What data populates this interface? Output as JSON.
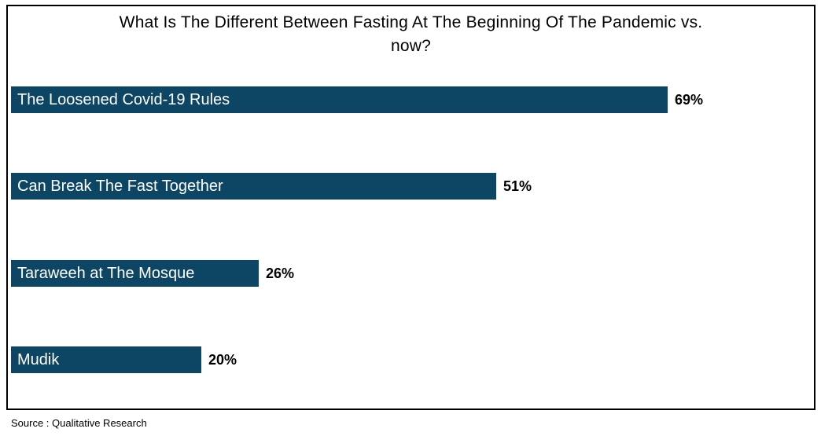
{
  "chart_data": {
    "type": "bar",
    "orientation": "horizontal",
    "title": "What Is The Different Between Fasting At The Beginning Of The Pandemic vs. now?",
    "title_lines": [
      "What Is The Different Between Fasting At The Beginning Of The Pandemic vs.",
      "now?"
    ],
    "categories": [
      "The Loosened Covid-19 Rules",
      "Can Break The Fast Together",
      "Taraweeh at The Mosque",
      "Mudik"
    ],
    "values": [
      69,
      51,
      26,
      20
    ],
    "value_labels": [
      "69%",
      "51%",
      "26%",
      "20%"
    ],
    "value_suffix": "%",
    "xlim": [
      0,
      85
    ],
    "xlabel": "",
    "ylabel": "",
    "grid": false,
    "legend": "none",
    "bar_color": "#0d4664",
    "bar_label_color": "#ffffff",
    "value_label_color": "#000000",
    "border_color": "#000000"
  },
  "footer": {
    "source_label": "Source : Qualitative Research"
  }
}
